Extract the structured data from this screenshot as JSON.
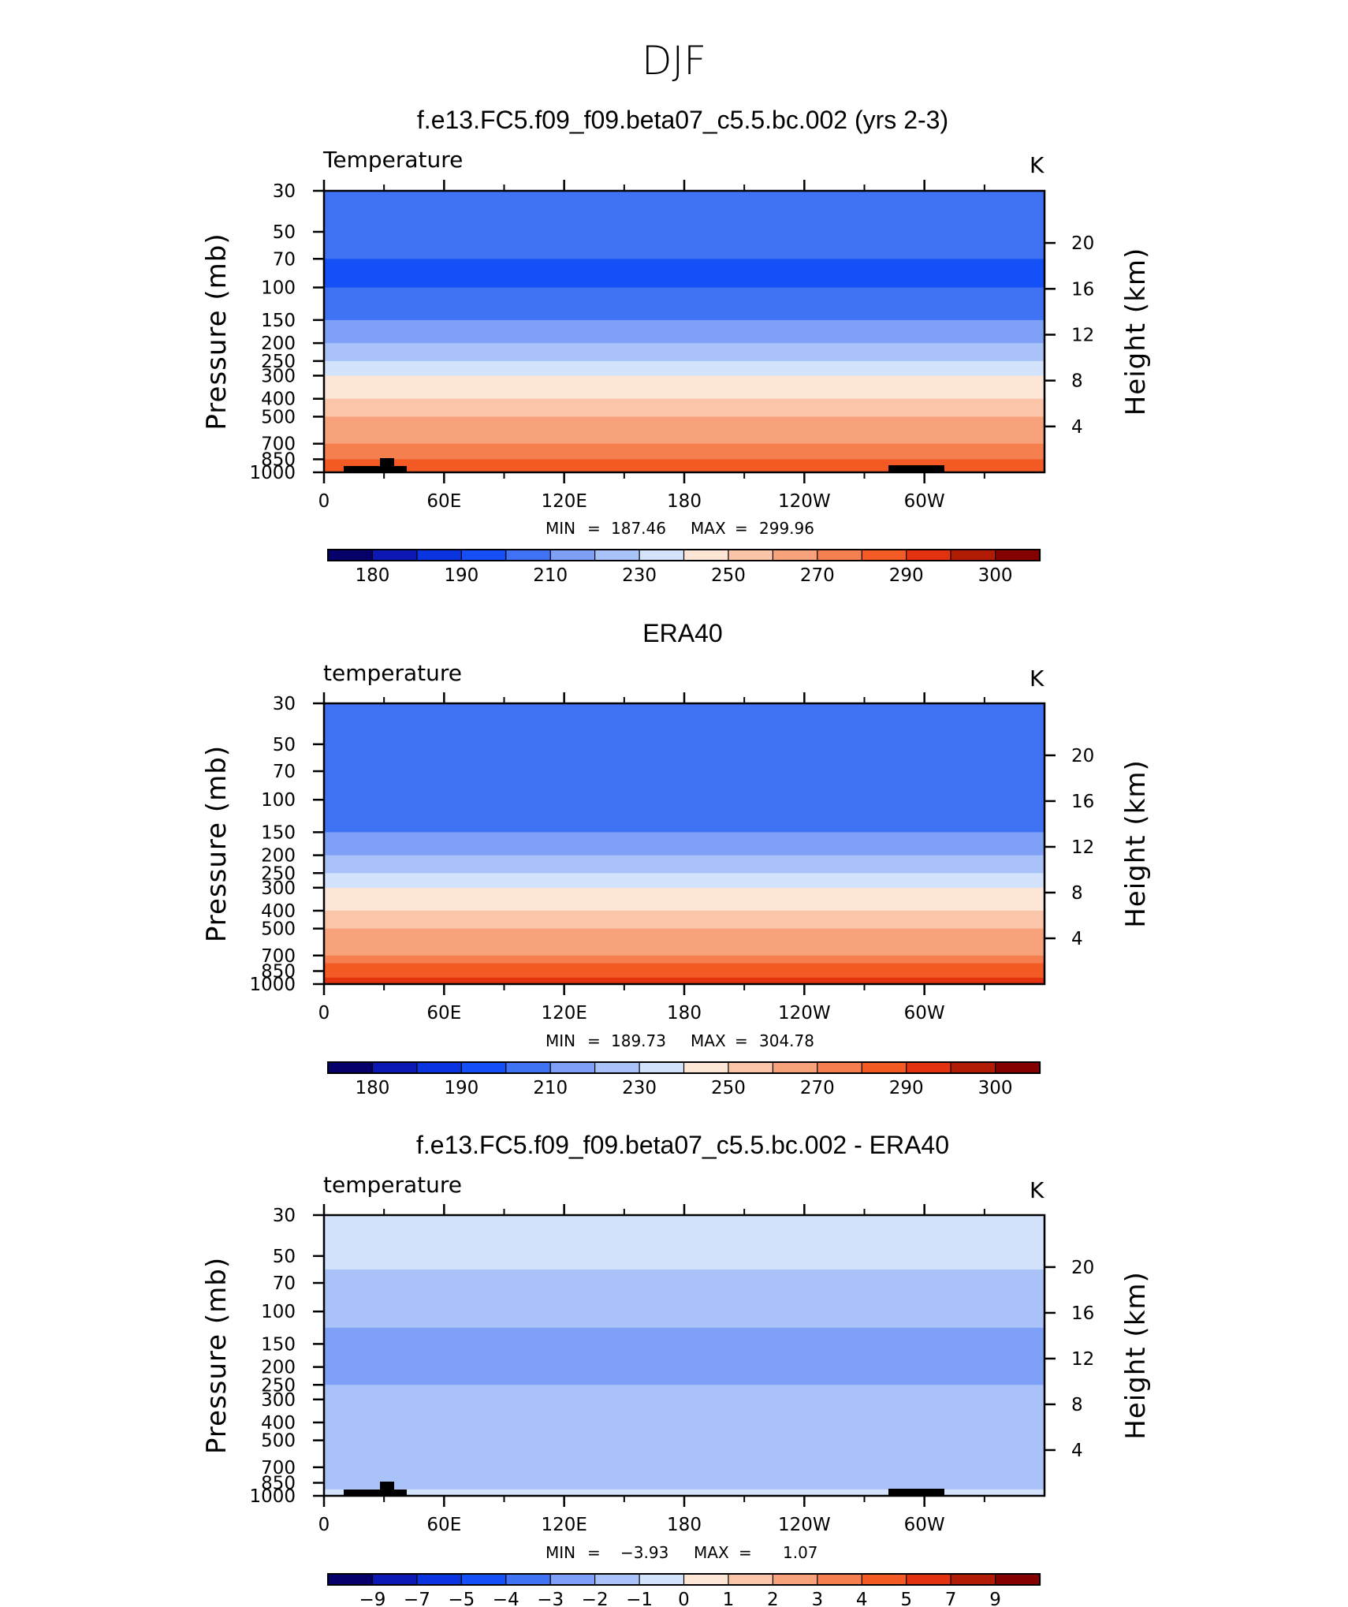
{
  "figure_title": "DJF",
  "chart_data": [
    {
      "type": "heatmap",
      "title": "f.e13.FC5.f09_f09.beta07_c5.5.bc.002 (yrs 2-3)",
      "variable_label": "Temperature",
      "units": "K",
      "ylabel": "Pressure (mb)",
      "ylabel_right": "Height (km)",
      "x_ticks": [
        "0",
        "60E",
        "120E",
        "180",
        "120W",
        "60W"
      ],
      "y_ticks": [
        "30",
        "50",
        "70",
        "100",
        "150",
        "200",
        "250",
        "300",
        "400",
        "500",
        "700",
        "850",
        "1000"
      ],
      "y_right_ticks": [
        "20",
        "16",
        "12",
        "8",
        "4"
      ],
      "min_label": "MIN",
      "min_value": "187.46",
      "max_label": "MAX",
      "max_value": "299.96",
      "colorbar_labels": [
        "180",
        "190",
        "210",
        "230",
        "250",
        "270",
        "290",
        "300"
      ],
      "profile": [
        {
          "p": 30,
          "v": 210
        },
        {
          "p": 50,
          "v": 205
        },
        {
          "p": 70,
          "v": 200
        },
        {
          "p": 100,
          "v": 198
        },
        {
          "p": 150,
          "v": 205
        },
        {
          "p": 200,
          "v": 215
        },
        {
          "p": 250,
          "v": 225
        },
        {
          "p": 300,
          "v": 235
        },
        {
          "p": 400,
          "v": 250
        },
        {
          "p": 500,
          "v": 258
        },
        {
          "p": 700,
          "v": 272
        },
        {
          "p": 850,
          "v": 282
        },
        {
          "p": 1000,
          "v": 292
        }
      ]
    },
    {
      "type": "heatmap",
      "title": "ERA40",
      "variable_label": "temperature",
      "units": "K",
      "ylabel": "Pressure (mb)",
      "ylabel_right": "Height (km)",
      "x_ticks": [
        "0",
        "60E",
        "120E",
        "180",
        "120W",
        "60W"
      ],
      "y_ticks": [
        "30",
        "50",
        "70",
        "100",
        "150",
        "200",
        "250",
        "300",
        "400",
        "500",
        "700",
        "850",
        "1000"
      ],
      "y_right_ticks": [
        "20",
        "16",
        "12",
        "8",
        "4"
      ],
      "min_label": "MIN",
      "min_value": "189.73",
      "max_label": "MAX",
      "max_value": "304.78",
      "colorbar_labels": [
        "180",
        "190",
        "210",
        "230",
        "250",
        "270",
        "290",
        "300"
      ],
      "profile": [
        {
          "p": 30,
          "v": 212
        },
        {
          "p": 50,
          "v": 206
        },
        {
          "p": 70,
          "v": 202
        },
        {
          "p": 100,
          "v": 200
        },
        {
          "p": 150,
          "v": 207
        },
        {
          "p": 200,
          "v": 217
        },
        {
          "p": 250,
          "v": 227
        },
        {
          "p": 300,
          "v": 236
        },
        {
          "p": 400,
          "v": 251
        },
        {
          "p": 500,
          "v": 259
        },
        {
          "p": 700,
          "v": 273
        },
        {
          "p": 850,
          "v": 284
        },
        {
          "p": 1000,
          "v": 295
        }
      ]
    },
    {
      "type": "heatmap",
      "title": "f.e13.FC5.f09_f09.beta07_c5.5.bc.002 - ERA40",
      "variable_label": "temperature",
      "units": "K",
      "ylabel": "Pressure (mb)",
      "ylabel_right": "Height (km)",
      "x_ticks": [
        "0",
        "60E",
        "120E",
        "180",
        "120W",
        "60W"
      ],
      "y_ticks": [
        "30",
        "50",
        "70",
        "100",
        "150",
        "200",
        "250",
        "300",
        "400",
        "500",
        "700",
        "850",
        "1000"
      ],
      "y_right_ticks": [
        "20",
        "16",
        "12",
        "8",
        "4"
      ],
      "min_label": "MIN",
      "min_value": "−3.93",
      "max_label": "MAX",
      "max_value": "1.07",
      "colorbar_labels": [
        "−9",
        "−7",
        "−5",
        "−4",
        "−3",
        "−2",
        "−1",
        "0",
        "1",
        "2",
        "3",
        "4",
        "5",
        "7",
        "9"
      ],
      "profile": [
        {
          "p": 30,
          "v": -0.5
        },
        {
          "p": 50,
          "v": -0.6
        },
        {
          "p": 70,
          "v": -1.2
        },
        {
          "p": 100,
          "v": -1.5
        },
        {
          "p": 150,
          "v": -2.5
        },
        {
          "p": 200,
          "v": -3.0
        },
        {
          "p": 250,
          "v": -2.0
        },
        {
          "p": 300,
          "v": -1.5
        },
        {
          "p": 400,
          "v": -1.0
        },
        {
          "p": 500,
          "v": -1.2
        },
        {
          "p": 700,
          "v": -1.5
        },
        {
          "p": 850,
          "v": -1.8
        },
        {
          "p": 1000,
          "v": -0.5
        }
      ]
    }
  ],
  "palette": [
    "#06006a",
    "#0b18b3",
    "#0a34e0",
    "#1450f5",
    "#3f73f3",
    "#7ea0f7",
    "#a9c2f8",
    "#d2e3fb",
    "#fde6d6",
    "#fbc5a9",
    "#f8a27c",
    "#f67f50",
    "#f35a24",
    "#e23210",
    "#b31c04",
    "#850000"
  ]
}
